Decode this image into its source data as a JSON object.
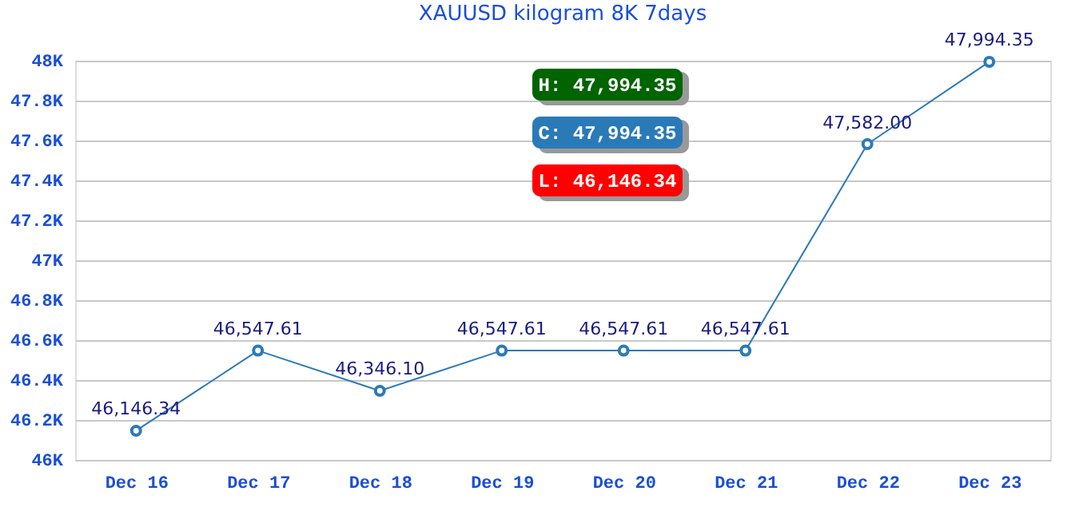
{
  "chart_data": {
    "type": "line",
    "title": "XAUUSD kilogram 8K 7days",
    "categories": [
      "Dec 16",
      "Dec 17",
      "Dec 18",
      "Dec 19",
      "Dec 20",
      "Dec 21",
      "Dec 22",
      "Dec 23"
    ],
    "series": [
      {
        "color": "#2a7ab8",
        "values": [
          46146.34,
          46547.61,
          46346.1,
          46547.61,
          46547.61,
          46547.61,
          47582.0,
          47994.35
        ],
        "value_labels": [
          "46,146.34",
          "46,547.61",
          "46,346.10",
          "46,547.61",
          "46,547.61",
          "46,547.61",
          "47,582.00",
          "47,994.35"
        ]
      }
    ],
    "ylim": [
      46000,
      48000
    ],
    "yticks": [
      {
        "value": 46000,
        "label": "46K"
      },
      {
        "value": 46200,
        "label": "46.2K"
      },
      {
        "value": 46400,
        "label": "46.4K"
      },
      {
        "value": 46600,
        "label": "46.6K"
      },
      {
        "value": 46800,
        "label": "46.8K"
      },
      {
        "value": 47000,
        "label": "47K"
      },
      {
        "value": 47200,
        "label": "47.2K"
      },
      {
        "value": 47400,
        "label": "47.4K"
      },
      {
        "value": 47600,
        "label": "47.6K"
      },
      {
        "value": 47800,
        "label": "47.8K"
      },
      {
        "value": 48000,
        "label": "48K"
      }
    ],
    "annotations": [
      "H: 47,994.35",
      "C: 47,994.35",
      "L: 46,146.34"
    ],
    "grid": "y",
    "marker": "circle",
    "line_style": "solid"
  }
}
